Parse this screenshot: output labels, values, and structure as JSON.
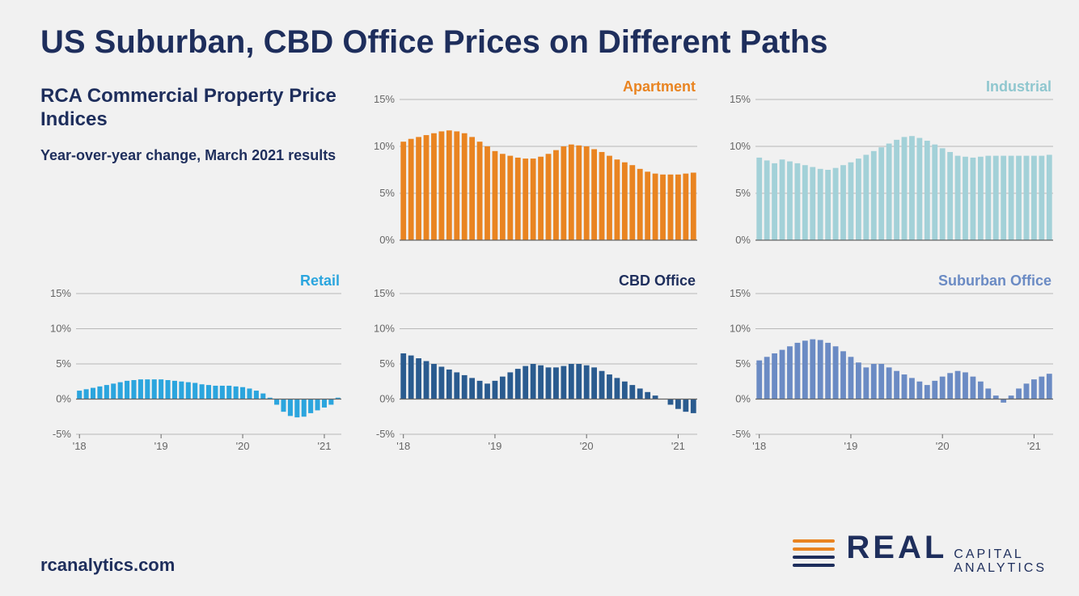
{
  "title": "US Suburban, CBD Office Prices on Different Paths",
  "info": {
    "heading": "RCA Commercial Property Price Indices",
    "sub": "Year-over-year change, March 2021 results"
  },
  "footer": {
    "url": "rcanalytics.com",
    "logo_real": "REAL",
    "logo_line1": "CAPITAL",
    "logo_line2": "ANALYTICS"
  },
  "layout": {
    "background_color": "#f1f1f1",
    "text_color": "#1e2e5c",
    "grid_color": "#b8b8b8",
    "axis_color": "#666666",
    "tick_font_size": 13
  },
  "top_row": {
    "ylim": [
      0,
      15
    ],
    "ytick_step": 5,
    "ytick_labels": [
      "0%",
      "5%",
      "10%",
      "15%"
    ]
  },
  "bottom_row": {
    "ylim": [
      -5,
      15
    ],
    "ytick_step": 5,
    "ytick_labels": [
      "-5%",
      "0%",
      "5%",
      "10%",
      "15%"
    ],
    "x_labels": [
      "'18",
      "'19",
      "'20",
      "'21"
    ]
  },
  "charts": {
    "apartment": {
      "label": "Apartment",
      "label_color": "#e98421",
      "bar_color": "#e98421",
      "values": [
        10.5,
        10.8,
        11.0,
        11.2,
        11.4,
        11.6,
        11.7,
        11.6,
        11.4,
        11.0,
        10.5,
        10.0,
        9.5,
        9.2,
        9.0,
        8.8,
        8.7,
        8.7,
        8.9,
        9.2,
        9.6,
        10.0,
        10.2,
        10.1,
        10.0,
        9.7,
        9.4,
        9.0,
        8.6,
        8.3,
        8.0,
        7.6,
        7.3,
        7.1,
        7.0,
        7.0,
        7.0,
        7.1,
        7.2
      ]
    },
    "industrial": {
      "label": "Industrial",
      "label_color": "#8fc7cf",
      "bar_color": "#a3d1d8",
      "values": [
        8.8,
        8.5,
        8.2,
        8.6,
        8.4,
        8.2,
        8.0,
        7.8,
        7.6,
        7.5,
        7.7,
        8.0,
        8.3,
        8.7,
        9.1,
        9.5,
        9.9,
        10.3,
        10.7,
        11.0,
        11.1,
        10.9,
        10.6,
        10.2,
        9.8,
        9.4,
        9.0,
        8.9,
        8.8,
        8.9,
        9.0,
        9.0,
        9.0,
        9.0,
        9.0,
        9.0,
        9.0,
        9.0,
        9.1
      ]
    },
    "retail": {
      "label": "Retail",
      "label_color": "#2ba5de",
      "bar_color": "#2ba5de",
      "values": [
        1.2,
        1.4,
        1.6,
        1.8,
        2.0,
        2.2,
        2.4,
        2.6,
        2.7,
        2.8,
        2.8,
        2.8,
        2.8,
        2.7,
        2.6,
        2.5,
        2.4,
        2.3,
        2.1,
        2.0,
        1.9,
        1.9,
        1.9,
        1.8,
        1.7,
        1.5,
        1.2,
        0.8,
        0.2,
        -0.8,
        -1.8,
        -2.4,
        -2.6,
        -2.5,
        -2.0,
        -1.6,
        -1.2,
        -0.8,
        0.2
      ]
    },
    "cbd": {
      "label": "CBD Office",
      "label_color": "#1e2e5c",
      "bar_color": "#2a5b8f",
      "values": [
        6.5,
        6.2,
        5.8,
        5.4,
        5.0,
        4.6,
        4.2,
        3.8,
        3.4,
        3.0,
        2.6,
        2.2,
        2.6,
        3.2,
        3.8,
        4.3,
        4.7,
        5.0,
        4.8,
        4.5,
        4.5,
        4.7,
        5.0,
        5.0,
        4.8,
        4.5,
        4.0,
        3.5,
        3.0,
        2.5,
        2.0,
        1.5,
        1.0,
        0.5,
        0.0,
        -0.8,
        -1.4,
        -1.8,
        -2.0
      ]
    },
    "suburban": {
      "label": "Suburban Office",
      "label_color": "#6b8bc4",
      "bar_color": "#6b8bc4",
      "values": [
        5.5,
        6.0,
        6.5,
        7.0,
        7.5,
        8.0,
        8.3,
        8.5,
        8.4,
        8.0,
        7.5,
        6.8,
        6.0,
        5.2,
        4.5,
        5.0,
        5.0,
        4.5,
        4.0,
        3.5,
        3.0,
        2.5,
        2.0,
        2.6,
        3.2,
        3.7,
        4.0,
        3.8,
        3.2,
        2.5,
        1.5,
        0.5,
        -0.5,
        0.5,
        1.5,
        2.2,
        2.8,
        3.2,
        3.6
      ]
    }
  }
}
